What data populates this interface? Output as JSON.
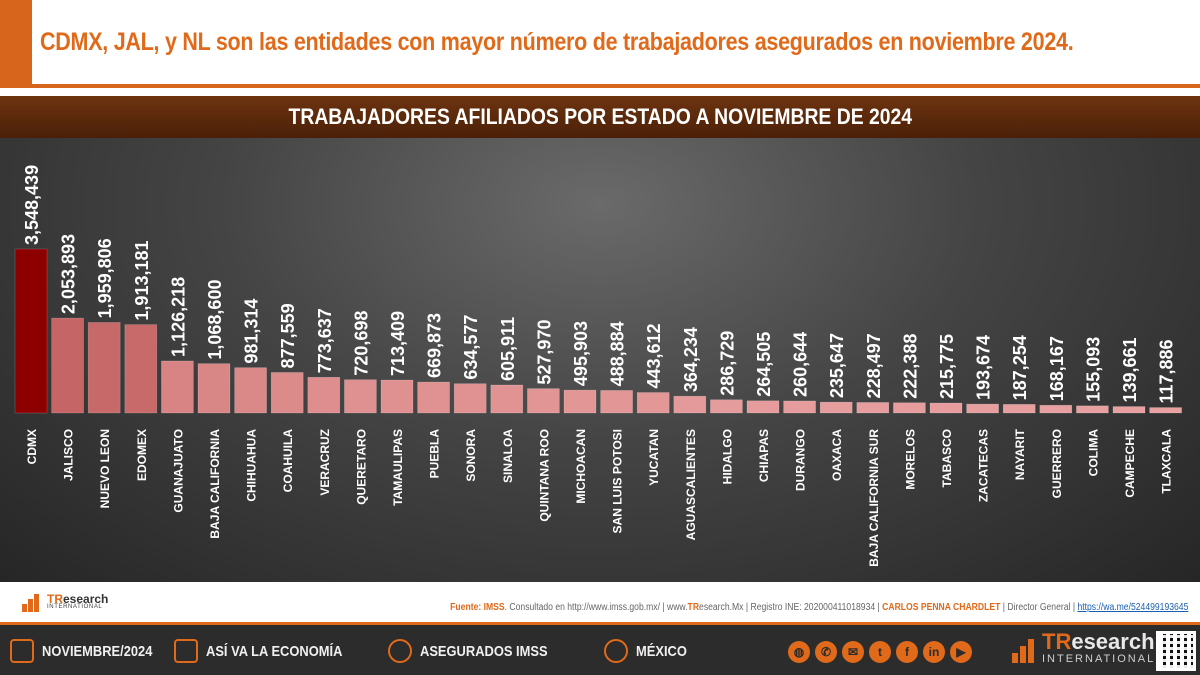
{
  "headline": "CDMX, JAL, y NL son las entidades con mayor número de trabajadores asegurados en noviembre 2024.",
  "chart_data": {
    "type": "bar",
    "title": "TRABAJADORES AFILIADOS POR ESTADO A NOVIEMBRE DE 2024",
    "categories": [
      "CDMX",
      "JALISCO",
      "NUEVO LEON",
      "EDOMEX",
      "GUANAJUATO",
      "BAJA CALIFORNIA",
      "CHIHUAHUA",
      "COAHUILA",
      "VERACRUZ",
      "QUERETARO",
      "TAMAULIPAS",
      "PUEBLA",
      "SONORA",
      "SINALOA",
      "QUINTANA ROO",
      "MICHOACAN",
      "SAN LUIS POTOSI",
      "YUCATAN",
      "AGUASCALIENTES",
      "HIDALGO",
      "CHIAPAS",
      "DURANGO",
      "OAXACA",
      "BAJA CALIFORNIA SUR",
      "MORELOS",
      "TABASCO",
      "ZACATECAS",
      "NAYARIT",
      "GUERRERO",
      "COLIMA",
      "CAMPECHE",
      "TLAXCALA"
    ],
    "values": [
      3548439,
      2053893,
      1959806,
      1913181,
      1126218,
      1068600,
      981314,
      877559,
      773637,
      720698,
      713409,
      669873,
      634577,
      605911,
      527970,
      495903,
      488884,
      443612,
      364234,
      286729,
      264505,
      260644,
      235647,
      228497,
      222388,
      215775,
      193674,
      187254,
      168167,
      155093,
      139661,
      117886
    ],
    "value_labels": [
      "3,548,439",
      "2,053,893",
      "1,959,806",
      "1,913,181",
      "1,126,218",
      "1,068,600",
      "981,314",
      "877,559",
      "773,637",
      "720,698",
      "713,409",
      "669,873",
      "634,577",
      "605,911",
      "527,970",
      "495,903",
      "488,884",
      "443,612",
      "364,234",
      "286,729",
      "264,505",
      "260,644",
      "235,647",
      "228,497",
      "222,388",
      "215,775",
      "193,674",
      "187,254",
      "168,167",
      "155,093",
      "139,661",
      "117,886"
    ],
    "ylim": [
      0,
      3548439
    ],
    "grid": false,
    "colors": {
      "max": "#8c0000",
      "min": "#e8a0a0"
    }
  },
  "logo": {
    "brand_highlight": "TR",
    "brand_rest": "esearch",
    "subtitle": "INTERNATIONAL"
  },
  "source": {
    "label": "Fuente:",
    "org": "IMSS",
    "consulted": ". Consultado en http://www.imss.gob.mx/",
    "site_prefix": " | www.",
    "site_highlight": "TR",
    "site_rest": "esearch.Mx",
    "registry": " | Registro INE: 202000411018934 | ",
    "director": "CARLOS PENNA CHARDLET",
    "director_title": " | Director General | ",
    "link": "https://wa.me/524499193645"
  },
  "footer": {
    "date": "NOVIEMBRE/2024",
    "section": "ASÍ VA LA ECONOMÍA",
    "topic": "ASEGURADOS IMSS",
    "country": "MÉXICO",
    "social_icons": [
      "globe-icon",
      "whatsapp-icon",
      "email-icon",
      "twitter-icon",
      "facebook-icon",
      "linkedin-icon",
      "youtube-icon"
    ]
  }
}
